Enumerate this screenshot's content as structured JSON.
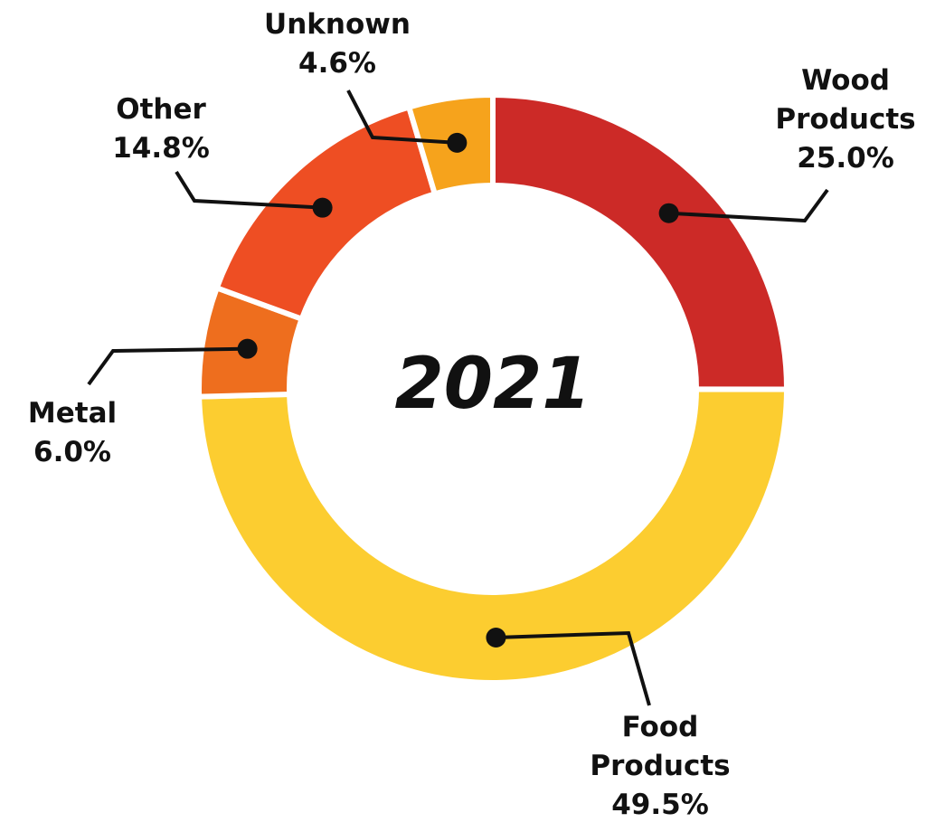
{
  "chart_data": {
    "type": "donut",
    "center_label": "2021",
    "categories": [
      "Wood Products",
      "Food Products",
      "Metal",
      "Other",
      "Unknown"
    ],
    "values": [
      25.0,
      49.5,
      6.0,
      14.8,
      4.6
    ],
    "value_labels": [
      "25.0%",
      "49.5%",
      "6.0%",
      "14.8%",
      "4.6%"
    ],
    "colors": [
      "#cc2a27",
      "#fccd30",
      "#ee6e1e",
      "#ee4e23",
      "#f6a31c"
    ]
  }
}
